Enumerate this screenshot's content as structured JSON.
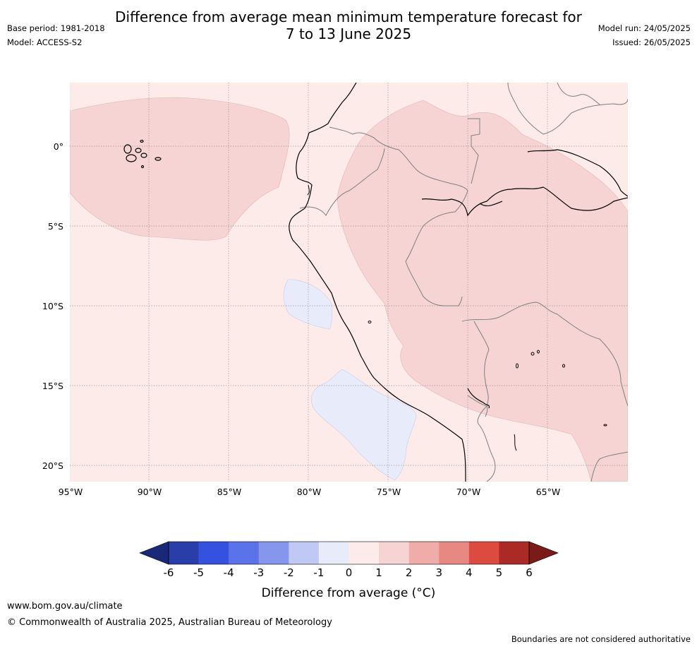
{
  "title_line1": "Difference from average mean minimum temperature forecast for",
  "title_line2": "7 to 13 June 2025",
  "meta_left": {
    "base_period": "Base period: 1981-2018",
    "model": "Model: ACCESS-S2"
  },
  "meta_right": {
    "model_run": "Model run: 24/05/2025",
    "issued": "Issued: 26/05/2025"
  },
  "map": {
    "lon_labels": [
      "95°W",
      "90°W",
      "85°W",
      "80°W",
      "75°W",
      "70°W",
      "65°W"
    ],
    "lat_labels": [
      "0°",
      "5°S",
      "10°S",
      "15°S",
      "20°S"
    ]
  },
  "colorbar": {
    "ticks": [
      "-6",
      "-5",
      "-4",
      "-3",
      "-2",
      "-1",
      "0",
      "1",
      "2",
      "3",
      "4",
      "5",
      "6"
    ],
    "colors": [
      "#2a3ea9",
      "#3451e0",
      "#5b73e8",
      "#8596ec",
      "#c0c8f4",
      "#e8ecfa",
      "#fcebe9",
      "#f5d4d3",
      "#efaca8",
      "#e88882",
      "#dd4b40",
      "#ac2a25"
    ],
    "under_color": "#1a2878",
    "over_color": "#7a1b17",
    "label": "Difference from average (°C)"
  },
  "footer": {
    "website": "www.bom.gov.au/climate",
    "copyright": "© Commonwealth of Australia 2025, Australian Bureau of Meteorology",
    "disclaimer": "Boundaries are not considered authoritative"
  }
}
